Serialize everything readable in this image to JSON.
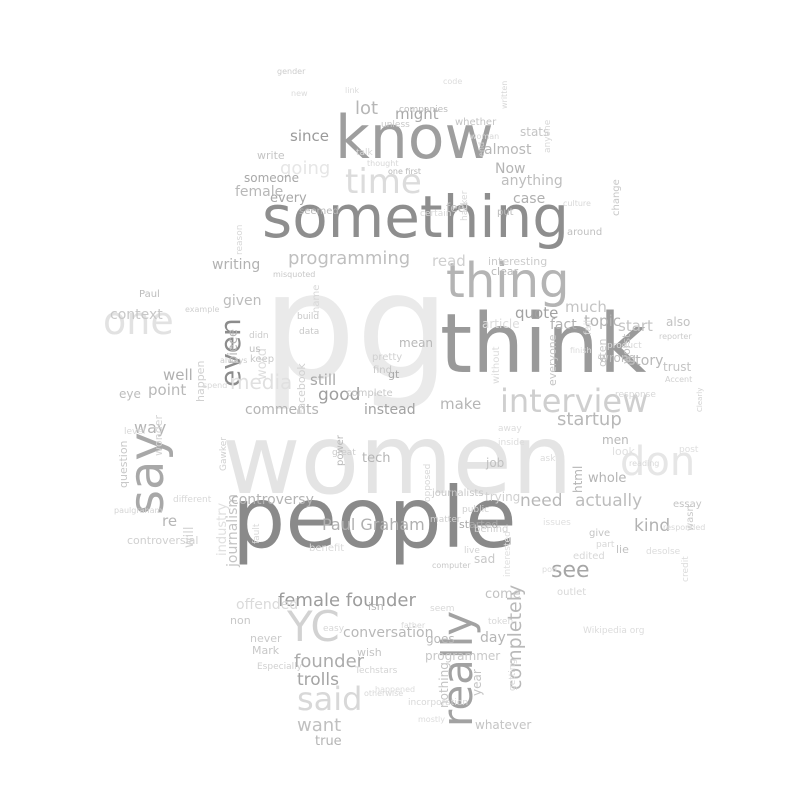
{
  "words": [
    {
      "text": "women",
      "tone": "#e4e4e4"
    },
    {
      "text": "pg",
      "tone": "#eaeaea"
    },
    {
      "text": "people",
      "tone": "#8a8a8a"
    },
    {
      "text": "think",
      "tone": "#9a9a9a"
    },
    {
      "text": "something",
      "tone": "#8e8e8e"
    },
    {
      "text": "know",
      "tone": "#9e9e9e"
    },
    {
      "text": "say",
      "tone": "#a8a8a8"
    },
    {
      "text": "really",
      "tone": "#a2a2a2"
    },
    {
      "text": "thing",
      "tone": "#b4b4b4"
    },
    {
      "text": "interview",
      "tone": "#cfcfcf"
    },
    {
      "text": "YC",
      "tone": "#d2d2d2"
    },
    {
      "text": "don",
      "tone": "#e6e6e6"
    },
    {
      "text": "one",
      "tone": "#e2e2e2"
    },
    {
      "text": "time",
      "tone": "#dcdcdc"
    },
    {
      "text": "said",
      "tone": "#d8d8d8"
    },
    {
      "text": "programming",
      "tone": "#bfbfbf"
    },
    {
      "text": "female founder",
      "tone": "#9c9c9c"
    },
    {
      "text": "Paul Graham",
      "tone": "#b0b0b0"
    },
    {
      "text": "even",
      "tone": "#8c8c8c"
    },
    {
      "text": "see",
      "tone": "#a6a6a6"
    },
    {
      "text": "startup",
      "tone": "#b8b8b8"
    },
    {
      "text": "completely",
      "tone": "#b9b9b9"
    },
    {
      "text": "actually",
      "tone": "#bdbdbd"
    },
    {
      "text": "founder",
      "tone": "#acacac"
    },
    {
      "text": "trolls",
      "tone": "#a4a4a4"
    },
    {
      "text": "want",
      "tone": "#c0c0c0"
    },
    {
      "text": "media",
      "tone": "#e0e0e0"
    },
    {
      "text": "going",
      "tone": "#e6e6e6"
    },
    {
      "text": "since",
      "tone": "#9a9a9a"
    },
    {
      "text": "lot",
      "tone": "#b6b6b6"
    },
    {
      "text": "might",
      "tone": "#a8a8a8"
    },
    {
      "text": "case",
      "tone": "#b0b0b0"
    },
    {
      "text": "quote",
      "tone": "#a2a2a2"
    },
    {
      "text": "fact",
      "tone": "#b2b2b2"
    },
    {
      "text": "topic",
      "tone": "#b4b4b4"
    },
    {
      "text": "start",
      "tone": "#c4c4c4"
    },
    {
      "text": "story",
      "tone": "#b8b8b8"
    },
    {
      "text": "kind",
      "tone": "#b2b2b2"
    },
    {
      "text": "good",
      "tone": "#9e9e9e"
    },
    {
      "text": "still",
      "tone": "#a8a8a8"
    },
    {
      "text": "instead",
      "tone": "#a2a2a2"
    },
    {
      "text": "make",
      "tone": "#b6b6b6"
    },
    {
      "text": "well",
      "tone": "#b0b0b0"
    },
    {
      "text": "point",
      "tone": "#b8b8b8"
    },
    {
      "text": "way",
      "tone": "#b4b4b4"
    },
    {
      "text": "re",
      "tone": "#b6b6b6"
    },
    {
      "text": "context",
      "tone": "#c8c8c8"
    },
    {
      "text": "given",
      "tone": "#bcbcbc"
    },
    {
      "text": "writing",
      "tone": "#b2b2b2"
    },
    {
      "text": "female",
      "tone": "#b8b8b8"
    },
    {
      "text": "every",
      "tone": "#a8a8a8"
    },
    {
      "text": "read",
      "tone": "#cfcfcf"
    },
    {
      "text": "much",
      "tone": "#c4c4c4"
    },
    {
      "text": "Now",
      "tone": "#b4b4b4"
    },
    {
      "text": "anything",
      "tone": "#bebebe"
    },
    {
      "text": "almost",
      "tone": "#b8b8b8"
    },
    {
      "text": "stats",
      "tone": "#c4c4c4"
    },
    {
      "text": "feel",
      "tone": "#c0c0c0"
    },
    {
      "text": "someone",
      "tone": "#a8a8a8"
    },
    {
      "text": "comments",
      "tone": "#b4b4b4"
    },
    {
      "text": "will",
      "tone": "#d4d4d4"
    },
    {
      "text": "journalism",
      "tone": "#c4c4c4"
    },
    {
      "text": "controversy",
      "tone": "#b4b4b4"
    },
    {
      "text": "offended",
      "tone": "#dadada"
    },
    {
      "text": "day",
      "tone": "#b6b6b6"
    },
    {
      "text": "come",
      "tone": "#c2c2c2"
    },
    {
      "text": "conversation",
      "tone": "#b8b8b8"
    },
    {
      "text": "true",
      "tone": "#b4b4b4"
    },
    {
      "text": "need",
      "tone": "#b8b8b8"
    },
    {
      "text": "word",
      "tone": "#dedede"
    },
    {
      "text": "tech",
      "tone": "#b4b4b4"
    },
    {
      "text": "gt",
      "tone": "#a8a8a8"
    },
    {
      "text": "mean",
      "tone": "#b8b8b8"
    },
    {
      "text": "whole",
      "tone": "#b4b4b4"
    },
    {
      "text": "eye",
      "tone": "#bcbcbc"
    },
    {
      "text": "piece",
      "tone": "#b4b4b4"
    },
    {
      "text": "industry",
      "tone": "#e0e0e0"
    },
    {
      "text": "controversial",
      "tone": "#d0d0d0"
    },
    {
      "text": "wonder",
      "tone": "#d4d4d4"
    },
    {
      "text": "question",
      "tone": "#c8c8c8"
    },
    {
      "text": "happen",
      "tone": "#d0d0d0"
    },
    {
      "text": "Facebook",
      "tone": "#d0d0d0"
    },
    {
      "text": "nothing",
      "tone": "#c4c4c4"
    },
    {
      "text": "year",
      "tone": "#c4c4c4"
    },
    {
      "text": "programmer",
      "tone": "#c8c8c8"
    },
    {
      "text": "goes",
      "tone": "#b8b8b8"
    },
    {
      "text": "job",
      "tone": "#c0c0c0"
    },
    {
      "text": "trying",
      "tone": "#d0d0d0"
    },
    {
      "text": "men",
      "tone": "#b8b8b8"
    },
    {
      "text": "html",
      "tone": "#b4b4b4"
    },
    {
      "text": "whatever",
      "tone": "#c4c4c4"
    },
    {
      "text": "wrong",
      "tone": "#c0c0c0"
    },
    {
      "text": "also",
      "tone": "#c2c2c2"
    },
    {
      "text": "trust",
      "tone": "#c4c4c4"
    },
    {
      "text": "worst",
      "tone": "#c0c0c0"
    },
    {
      "text": "often",
      "tone": "#c8c8c8"
    },
    {
      "text": "change",
      "tone": "#c8c8c8"
    },
    {
      "text": "interesting",
      "tone": "#cbcbcb"
    },
    {
      "text": "clear",
      "tone": "#b8b8b8"
    },
    {
      "text": "put",
      "tone": "#bcbcbc"
    },
    {
      "text": "around",
      "tone": "#c0c0c0"
    },
    {
      "text": "wish",
      "tone": "#c4c4c4"
    },
    {
      "text": "isn",
      "tone": "#b8b8b8"
    },
    {
      "text": "never",
      "tone": "#cacaca"
    },
    {
      "text": "Mark",
      "tone": "#c8c8c8"
    },
    {
      "text": "non",
      "tone": "#c8c8c8"
    },
    {
      "text": "benefit",
      "tone": "#dadada"
    },
    {
      "text": "started",
      "tone": "#a8a8a8"
    },
    {
      "text": "power",
      "tone": "#b8b8b8"
    },
    {
      "text": "journalists",
      "tone": "#c8c8c8"
    },
    {
      "text": "lie",
      "tone": "#c0c0c0"
    },
    {
      "text": "essay",
      "tone": "#c4c4c4"
    },
    {
      "text": "wasn",
      "tone": "#c8c8c8"
    },
    {
      "text": "give",
      "tone": "#c4c4c4"
    },
    {
      "text": "sad",
      "tone": "#c8c8c8"
    },
    {
      "text": "article",
      "tone": "#dcdcdc"
    },
    {
      "text": "without",
      "tone": "#dcdcdc"
    },
    {
      "text": "everyone",
      "tone": "#c4c4c4"
    },
    {
      "text": "complete",
      "tone": "#c8c8c8"
    },
    {
      "text": "great",
      "tone": "#cccccc"
    },
    {
      "text": "pretty",
      "tone": "#d0d0d0"
    },
    {
      "text": "find",
      "tone": "#c8c8c8"
    },
    {
      "text": "build",
      "tone": "#c8c8c8"
    },
    {
      "text": "data",
      "tone": "#c8c8c8"
    },
    {
      "text": "didn",
      "tone": "#cccccc"
    },
    {
      "text": "us",
      "tone": "#c0c0c0"
    },
    {
      "text": "keep",
      "tone": "#c8c8c8"
    },
    {
      "text": "Paul",
      "tone": "#bcbcbc"
    },
    {
      "text": "write",
      "tone": "#c4c4c4"
    },
    {
      "text": "seemed",
      "tone": "#b8b8b8"
    },
    {
      "text": "one first",
      "tone": "#b8b8b8"
    },
    {
      "text": "companies",
      "tone": "#bcbcbc"
    },
    {
      "text": "unless",
      "tone": "#c8c8c8"
    },
    {
      "text": "whether",
      "tone": "#c4c4c4"
    },
    {
      "text": "matter",
      "tone": "#d0d0d0"
    },
    {
      "text": "Gawker",
      "tone": "#d0d0d0"
    },
    {
      "text": "reporter",
      "tone": "#cccccc"
    },
    {
      "text": "Accent",
      "tone": "#d0d0d0"
    },
    {
      "text": "Clearly",
      "tone": "#d0d0d0"
    },
    {
      "text": "Especially",
      "tone": "#d0d0d0"
    },
    {
      "text": "Techstars",
      "tone": "#d4d4d4"
    },
    {
      "text": "gender",
      "tone": "#cccccc"
    },
    {
      "text": "end",
      "tone": "#d4d4d4"
    },
    {
      "text": "misquoted",
      "tone": "#c8c8c8"
    },
    {
      "text": "always",
      "tone": "#cccccc"
    },
    {
      "text": "example",
      "tone": "#d0d0d0"
    },
    {
      "text": "spend",
      "tone": "#d8d8d8"
    },
    {
      "text": "name",
      "tone": "#d8d8d8"
    },
    {
      "text": "interested",
      "tone": "#e0e0e0"
    },
    {
      "text": "computer",
      "tone": "#c8c8c8"
    },
    {
      "text": "live",
      "tone": "#d4d4d4"
    },
    {
      "text": "public",
      "tone": "#d0d0d0"
    },
    {
      "text": "behind",
      "tone": "#d0d0d0"
    },
    {
      "text": "outlet",
      "tone": "#d8d8d8"
    },
    {
      "text": "edited",
      "tone": "#d8d8d8"
    },
    {
      "text": "look",
      "tone": "#e0e0e0"
    },
    {
      "text": "post",
      "tone": "#dedede"
    },
    {
      "text": "reading",
      "tone": "#d8d8d8"
    },
    {
      "text": "level",
      "tone": "#d8d8d8"
    },
    {
      "text": "different",
      "tone": "#d8d8d8"
    },
    {
      "text": "culture",
      "tone": "#d8d8d8"
    },
    {
      "text": "written",
      "tone": "#d8d8d8"
    },
    {
      "text": "credit",
      "tone": "#dcdcdc"
    },
    {
      "text": "father",
      "tone": "#d8d8d8"
    },
    {
      "text": "token",
      "tone": "#d8d8d8"
    },
    {
      "text": "anyone",
      "tone": "#d8d8d8"
    },
    {
      "text": "certain",
      "tone": "#d8d8d8"
    },
    {
      "text": "response",
      "tone": "#d8d8d8"
    },
    {
      "text": "product",
      "tone": "#d8d8d8"
    },
    {
      "text": "finish",
      "tone": "#dcdcdc"
    },
    {
      "text": "fail",
      "tone": "#d8d8d8"
    },
    {
      "text": "talk",
      "tone": "#d8d8d8"
    },
    {
      "text": "thought",
      "tone": "#d8d8d8"
    },
    {
      "text": "woman",
      "tone": "#d8d8d8"
    },
    {
      "text": "hacker",
      "tone": "#d8d8d8"
    },
    {
      "text": "reason",
      "tone": "#d8d8d8"
    },
    {
      "text": "getting",
      "tone": "#d8d8d8"
    },
    {
      "text": "Wikipedia org",
      "tone": "#dcdcdc"
    },
    {
      "text": "paulgraham",
      "tone": "#d4d4d4"
    },
    {
      "text": "responded",
      "tone": "#d8d8d8"
    },
    {
      "text": "desolse",
      "tone": "#dcdcdc"
    },
    {
      "text": "part",
      "tone": "#d8d8d8"
    },
    {
      "text": "issues",
      "tone": "#e0e0e0"
    },
    {
      "text": "fault",
      "tone": "#d8d8d8"
    },
    {
      "text": "seem",
      "tone": "#d8d8d8"
    },
    {
      "text": "easy",
      "tone": "#d8d8d8"
    },
    {
      "text": "opposed",
      "tone": "#d8d8d8"
    },
    {
      "text": "incorporation",
      "tone": "#d8d8d8"
    },
    {
      "text": "happened",
      "tone": "#dcdcdc"
    },
    {
      "text": "otherwise",
      "tone": "#d8d8d8"
    },
    {
      "text": "mostly",
      "tone": "#dcdcdc"
    },
    {
      "text": "away",
      "tone": "#dcdcdc"
    },
    {
      "text": "inside",
      "tone": "#dcdcdc"
    },
    {
      "text": "ask",
      "tone": "#dcdcdc"
    },
    {
      "text": "new",
      "tone": "#dcdcdc"
    },
    {
      "text": "link",
      "tone": "#dcdcdc"
    },
    {
      "text": "code",
      "tone": "#dcdcdc"
    },
    {
      "text": "pod",
      "tone": "#dcdcdc"
    },
    {
      "text": "took",
      "tone": "#e0e0e0"
    },
    {
      "text": "entire",
      "tone": "#dcdcdc"
    },
    {
      "text": "stop",
      "tone": "#dcdcdc"
    }
  ]
}
